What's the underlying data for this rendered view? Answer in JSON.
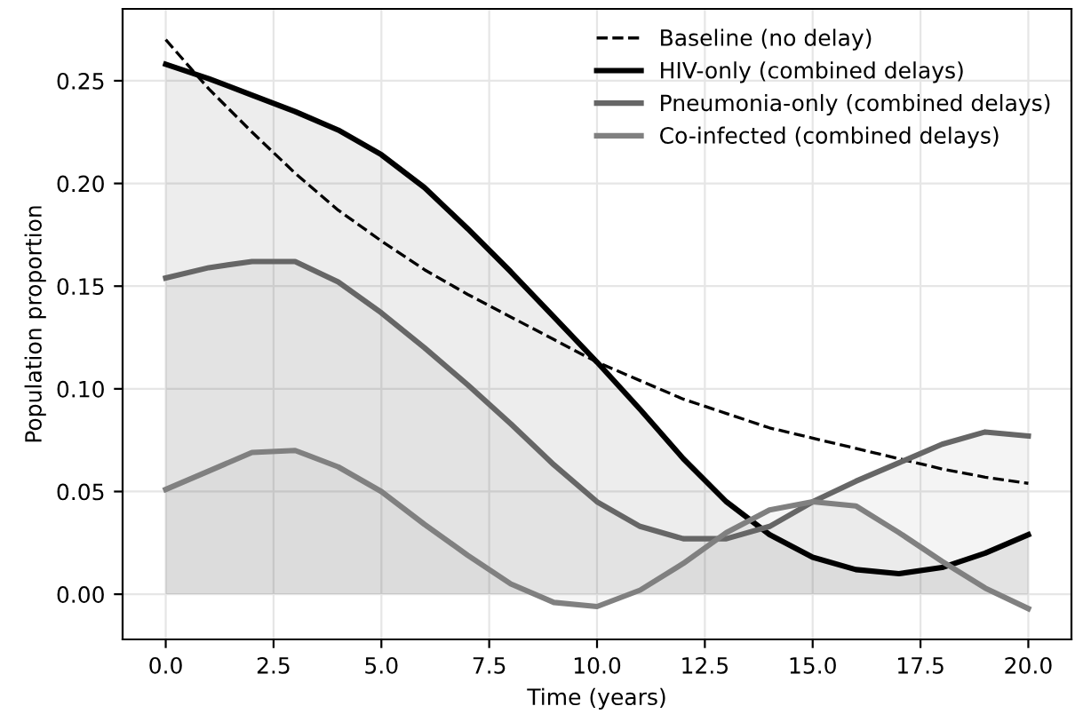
{
  "chart_data": {
    "type": "line",
    "xlabel": "Time (years)",
    "ylabel": "Population proportion",
    "series": [
      {
        "name": "Baseline (no delay)",
        "line_style": "dashed",
        "color": "#000000",
        "x": [
          0,
          1,
          2,
          3,
          4,
          5,
          6,
          7,
          8,
          9,
          10,
          11,
          12,
          13,
          14,
          15,
          16,
          17,
          18,
          19,
          20
        ],
        "values": [
          0.27,
          0.246,
          0.225,
          0.205,
          0.187,
          0.172,
          0.158,
          0.146,
          0.135,
          0.124,
          0.113,
          0.104,
          0.095,
          0.088,
          0.081,
          0.076,
          0.071,
          0.066,
          0.061,
          0.057,
          0.054
        ]
      },
      {
        "name": "HIV-only (combined delays)",
        "type": "area",
        "color": "#000000",
        "x": [
          0,
          1,
          2,
          3,
          4,
          5,
          6,
          7,
          8,
          9,
          10,
          11,
          12,
          13,
          14,
          15,
          16,
          17,
          18,
          19,
          20
        ],
        "values": [
          0.258,
          0.251,
          0.243,
          0.235,
          0.226,
          0.214,
          0.198,
          0.178,
          0.157,
          0.135,
          0.113,
          0.09,
          0.066,
          0.045,
          0.029,
          0.018,
          0.012,
          0.01,
          0.013,
          0.02,
          0.029
        ]
      },
      {
        "name": "Pneumonia-only (combined delays)",
        "type": "area",
        "color": "#666666",
        "x": [
          0,
          1,
          2,
          3,
          4,
          5,
          6,
          7,
          8,
          9,
          10,
          11,
          12,
          13,
          14,
          15,
          16,
          17,
          18,
          19,
          20
        ],
        "values": [
          0.154,
          0.159,
          0.162,
          0.162,
          0.152,
          0.137,
          0.12,
          0.102,
          0.083,
          0.063,
          0.045,
          0.033,
          0.027,
          0.027,
          0.033,
          0.045,
          0.055,
          0.064,
          0.073,
          0.079,
          0.077
        ]
      },
      {
        "name": "Co-infected (combined delays)",
        "type": "area",
        "color": "#808080",
        "x": [
          0,
          1,
          2,
          3,
          4,
          5,
          6,
          7,
          8,
          9,
          10,
          11,
          12,
          13,
          14,
          15,
          16,
          17,
          18,
          19,
          20
        ],
        "values": [
          0.051,
          0.06,
          0.069,
          0.07,
          0.062,
          0.05,
          0.034,
          0.019,
          0.005,
          -0.004,
          -0.006,
          0.002,
          0.015,
          0.03,
          0.041,
          0.045,
          0.043,
          0.03,
          0.016,
          0.003,
          -0.007
        ]
      }
    ],
    "xlim": [
      -1,
      21
    ],
    "ylim": [
      -0.022,
      0.285
    ],
    "xticks": [
      {
        "value": 0,
        "label": "0.0"
      },
      2.5,
      {
        "value": 5,
        "label": "5.0"
      },
      7.5,
      {
        "value": 10,
        "label": "10.0"
      },
      12.5,
      {
        "value": 15,
        "label": "15.0"
      },
      17.5,
      {
        "value": 20,
        "label": "20.0"
      }
    ],
    "yticks": [
      {
        "value": 0,
        "label": "0.00"
      },
      0.05,
      {
        "value": 0.1,
        "label": "0.10"
      },
      0.15,
      {
        "value": 0.2,
        "label": "0.20"
      },
      0.25
    ],
    "grid": true,
    "legend": "top right"
  }
}
